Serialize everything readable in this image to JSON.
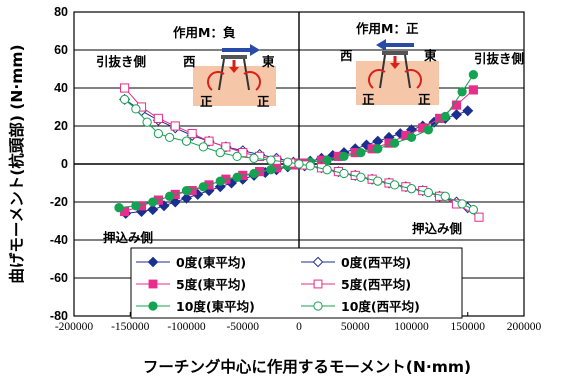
{
  "chart_data": {
    "type": "line",
    "xlabel": "フーチング中心に作用するモーメント(N·mm)",
    "ylabel": "曲げモーメント(杭頭部) (N·mm)",
    "xlim": [
      -200000,
      200000
    ],
    "ylim": [
      -80,
      80
    ],
    "x_ticks": [
      "-200000",
      "-150000",
      "-100000",
      "-50000",
      "0",
      "50000",
      "100000",
      "150000",
      "200000"
    ],
    "y_ticks": [
      "80",
      "60",
      "40",
      "20",
      "0",
      "-20",
      "-40",
      "-60",
      "-80"
    ],
    "grid": true,
    "legend_position": "bottom-center",
    "series": [
      {
        "name": "0度(東平均)",
        "color": "#1a2f8f",
        "marker": "diamond-filled",
        "x": [
          -154000,
          -140000,
          -130000,
          -120000,
          -110000,
          -100000,
          -90000,
          -80000,
          -70000,
          -60000,
          -50000,
          -40000,
          -30000,
          -20000,
          -10000,
          0,
          10000,
          20000,
          30000,
          40000,
          50000,
          60000,
          70000,
          80000,
          90000,
          100000,
          110000,
          120000,
          130000,
          140000,
          150000
        ],
        "y": [
          -26,
          -25,
          -24,
          -22,
          -20,
          -18,
          -16,
          -14,
          -12,
          -10,
          -8,
          -6,
          -4.5,
          -3,
          -1.5,
          0,
          1.5,
          3,
          4.5,
          6,
          8,
          10,
          12,
          14,
          16,
          18,
          20,
          22,
          24,
          26,
          28
        ]
      },
      {
        "name": "5度(東平均)",
        "color": "#e62e8a",
        "marker": "square-filled",
        "x": [
          -155000,
          -140000,
          -125000,
          -110000,
          -95000,
          -80000,
          -65000,
          -50000,
          -35000,
          -20000,
          -5000,
          0,
          5000,
          20000,
          35000,
          50000,
          65000,
          80000,
          95000,
          110000,
          125000,
          140000,
          155000
        ],
        "y": [
          -25,
          -22,
          -19,
          -16,
          -14,
          -11,
          -8,
          -6,
          -4,
          -2,
          -0.5,
          0,
          0.5,
          2,
          4,
          6,
          8,
          11,
          15,
          19,
          24,
          31,
          39
        ]
      },
      {
        "name": "10度(東平均)",
        "color": "#13a352",
        "marker": "circle-filled",
        "x": [
          -160000,
          -145000,
          -130000,
          -115000,
          -100000,
          -85000,
          -70000,
          -55000,
          -40000,
          -25000,
          -10000,
          0,
          10000,
          25000,
          40000,
          55000,
          70000,
          85000,
          100000,
          115000,
          130000,
          145000,
          155000
        ],
        "y": [
          -23,
          -22,
          -20,
          -17,
          -14,
          -12,
          -9,
          -7,
          -5,
          -3,
          -1,
          0,
          1,
          2,
          4,
          6,
          8,
          11,
          14,
          18,
          25,
          38,
          47
        ]
      },
      {
        "name": "0度(西平均)",
        "color": "#1a2f8f",
        "marker": "diamond-open",
        "x": [
          -155000,
          -140000,
          -125000,
          -110000,
          -95000,
          -80000,
          -65000,
          -50000,
          -35000,
          -20000,
          -5000,
          0,
          5000,
          20000,
          35000,
          50000,
          65000,
          80000,
          95000,
          110000,
          125000,
          140000,
          150000
        ],
        "y": [
          34,
          28,
          23,
          19,
          15,
          12,
          9,
          7,
          5,
          3,
          1,
          0,
          -1,
          -2,
          -4,
          -6,
          -8,
          -10,
          -12,
          -14,
          -17,
          -20,
          -23
        ]
      },
      {
        "name": "5度(西平均)",
        "color": "#e62e8a",
        "marker": "square-open",
        "x": [
          -155000,
          -140000,
          -125000,
          -110000,
          -95000,
          -80000,
          -65000,
          -50000,
          -35000,
          -20000,
          -5000,
          0,
          5000,
          20000,
          35000,
          50000,
          65000,
          80000,
          95000,
          110000,
          125000,
          140000,
          160000
        ],
        "y": [
          40,
          30,
          24,
          20,
          16,
          12,
          9,
          6,
          4,
          2,
          0.5,
          0,
          -0.5,
          -2,
          -4,
          -6,
          -8,
          -10,
          -12,
          -14,
          -17,
          -21,
          -28
        ]
      },
      {
        "name": "10度(西平均)",
        "color": "#13a352",
        "marker": "circle-open",
        "x": [
          -155000,
          -145000,
          -135000,
          -125000,
          -115000,
          -100000,
          -85000,
          -70000,
          -55000,
          -40000,
          -25000,
          -10000,
          0,
          10000,
          25000,
          40000,
          55000,
          70000,
          85000,
          100000,
          115000,
          130000,
          145000,
          155000
        ],
        "y": [
          34,
          29,
          22,
          16,
          14,
          12,
          9,
          6,
          4,
          3,
          2,
          1,
          0,
          -1,
          -3,
          -5,
          -7,
          -9,
          -11,
          -13,
          -15,
          -17,
          -21,
          -24
        ]
      }
    ]
  },
  "annotations": {
    "left_pullout": "引抜き側",
    "right_pullout": "引抜き側",
    "left_pushin": "押込み側",
    "right_pushin": "押込み側",
    "moment_negative": "作用M：負",
    "moment_positive": "作用M：正",
    "west": "西",
    "east": "東",
    "positive_char": "正"
  },
  "colors": {
    "inset_fill": "#f5c6a8",
    "arrow_blue": "#2a4aa8",
    "arrow_red": "#d9201a"
  }
}
